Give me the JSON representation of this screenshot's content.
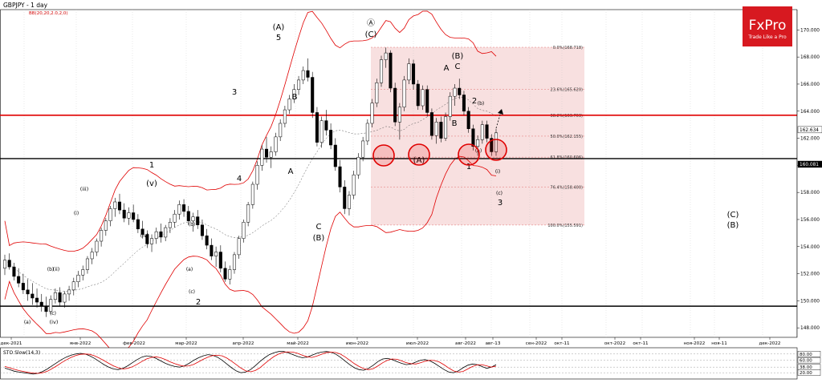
{
  "header": {
    "title": "GBPJPY - 1 day",
    "indicator": "BB(20,20,2.0,2,0)"
  },
  "brand": {
    "name": "FxPro",
    "tagline": "Trade Like a Pro",
    "color": "#d71920"
  },
  "colors": {
    "fib_fill": "#f6d6d6",
    "resistance": "#e00000",
    "support": "#000000",
    "band": "#e00000",
    "candle_up": "#ffffff",
    "candle_down": "#000000",
    "circle": "#e00000"
  },
  "chart_data": [
    {
      "type": "candlestick",
      "title": "GBPJPY - 1 day",
      "price_axis": {
        "ticks": [
          "170.000",
          "168.000",
          "166.000",
          "164.000",
          "162.000",
          "160.000",
          "158.000",
          "156.000",
          "154.000",
          "152.000",
          "150.000",
          "148.000"
        ],
        "ylim": [
          147.3,
          171.5
        ],
        "tags": [
          "162.634",
          "160.081"
        ]
      },
      "time_axis": {
        "labels": [
          "дек-2021",
          "янв-2022",
          "фев-2022",
          "мар-2022",
          "апр-2022",
          "май-2022",
          "июн-2022",
          "июл-2022",
          "авг-2022",
          "авг-13",
          "сен-2022",
          "окт-11",
          "окт-2022",
          "окт-11",
          "ноя-2022",
          "ноя-11",
          "дек-2022"
        ]
      },
      "levels": {
        "resistance": 163.7,
        "support_mid": 160.5,
        "support_low": 149.6
      },
      "fibonacci": [
        {
          "label": "0.0%(168.718)",
          "value": 168.718
        },
        {
          "label": "23.6%(165.620)",
          "value": 165.62
        },
        {
          "label": "38.2%(163.703)",
          "value": 163.703
        },
        {
          "label": "50.0%(162.155)",
          "value": 162.155
        },
        {
          "label": "61.8%(160.606)",
          "value": 160.606
        },
        {
          "label": "76.4%(158.400)",
          "value": 158.4
        },
        {
          "label": "100.0%(155.591)",
          "value": 155.591
        }
      ],
      "wave_labels": [
        "(A)",
        "5",
        "Ⓐ",
        "(C)",
        "3",
        "B",
        "A",
        "4",
        "1",
        "(v)",
        "(iii)",
        "(i)",
        "(iv)",
        "(ii)",
        "(b)",
        "(a)",
        "(c)",
        "(iv)",
        "(a)",
        "(b)",
        "(c)",
        "2",
        "C",
        "(B)",
        "(A)",
        "A",
        "(B)",
        "C",
        "B",
        "2",
        "(b)",
        "(a)",
        "1",
        "(i)",
        "(c)",
        "3",
        "(C)",
        "(B)"
      ],
      "candles": [
        [
          152.4,
          153.4,
          151.9,
          153.0
        ],
        [
          153.0,
          153.5,
          152.3,
          152.5
        ],
        [
          152.5,
          152.8,
          151.5,
          151.8
        ],
        [
          151.8,
          152.4,
          151.0,
          151.3
        ],
        [
          151.3,
          152.0,
          150.5,
          150.8
        ],
        [
          150.8,
          151.6,
          150.0,
          150.5
        ],
        [
          150.5,
          151.3,
          149.7,
          150.2
        ],
        [
          150.2,
          150.9,
          149.5,
          149.9
        ],
        [
          149.9,
          150.5,
          149.2,
          149.6
        ],
        [
          149.6,
          150.3,
          148.8,
          149.2
        ],
        [
          149.2,
          150.4,
          149.0,
          150.1
        ],
        [
          150.1,
          150.9,
          149.8,
          150.6
        ],
        [
          150.6,
          151.0,
          149.6,
          149.9
        ],
        [
          149.9,
          150.7,
          149.5,
          150.5
        ],
        [
          150.5,
          151.1,
          150.0,
          150.8
        ],
        [
          150.8,
          151.7,
          150.4,
          151.4
        ],
        [
          151.4,
          152.2,
          151.0,
          151.9
        ],
        [
          151.9,
          152.6,
          151.5,
          152.3
        ],
        [
          152.3,
          153.3,
          152.0,
          153.1
        ],
        [
          153.1,
          153.9,
          152.7,
          153.6
        ],
        [
          153.6,
          154.6,
          153.3,
          154.4
        ],
        [
          154.4,
          155.4,
          154.0,
          155.2
        ],
        [
          155.2,
          156.1,
          154.8,
          155.9
        ],
        [
          155.9,
          157.0,
          155.5,
          156.8
        ],
        [
          156.8,
          157.6,
          156.2,
          157.3
        ],
        [
          157.3,
          157.9,
          156.4,
          156.7
        ],
        [
          156.7,
          157.2,
          155.8,
          156.1
        ],
        [
          156.1,
          156.9,
          155.6,
          156.5
        ],
        [
          156.5,
          157.1,
          155.8,
          156.0
        ],
        [
          156.0,
          156.4,
          155.0,
          155.3
        ],
        [
          155.3,
          155.9,
          154.6,
          154.9
        ],
        [
          154.9,
          155.2,
          153.9,
          154.2
        ],
        [
          154.2,
          154.9,
          153.6,
          154.6
        ],
        [
          154.6,
          155.4,
          154.2,
          155.1
        ],
        [
          155.1,
          155.7,
          154.3,
          154.7
        ],
        [
          154.7,
          155.6,
          154.4,
          155.4
        ],
        [
          155.4,
          156.1,
          155.0,
          155.8
        ],
        [
          155.8,
          156.7,
          155.4,
          156.4
        ],
        [
          156.4,
          157.4,
          156.0,
          157.1
        ],
        [
          157.1,
          157.5,
          156.2,
          156.6
        ],
        [
          156.6,
          157.0,
          155.6,
          155.9
        ],
        [
          155.9,
          156.5,
          155.1,
          156.2
        ],
        [
          156.2,
          156.7,
          155.3,
          155.6
        ],
        [
          155.6,
          156.0,
          154.5,
          154.8
        ],
        [
          154.8,
          155.3,
          153.8,
          154.1
        ],
        [
          154.1,
          154.6,
          153.0,
          153.3
        ],
        [
          153.3,
          154.0,
          152.5,
          153.6
        ],
        [
          153.6,
          154.1,
          152.1,
          152.4
        ],
        [
          152.4,
          152.9,
          151.4,
          151.6
        ],
        [
          151.6,
          152.6,
          151.2,
          152.3
        ],
        [
          152.3,
          153.6,
          152.0,
          153.4
        ],
        [
          153.4,
          154.8,
          153.1,
          154.6
        ],
        [
          154.6,
          156.0,
          154.3,
          155.8
        ],
        [
          155.8,
          157.3,
          155.5,
          157.1
        ],
        [
          157.1,
          158.8,
          156.8,
          158.6
        ],
        [
          158.6,
          160.3,
          158.2,
          160.0
        ],
        [
          160.0,
          161.5,
          159.6,
          161.2
        ],
        [
          161.2,
          162.1,
          160.2,
          160.6
        ],
        [
          160.6,
          161.4,
          159.8,
          161.0
        ],
        [
          161.0,
          162.4,
          160.7,
          162.1
        ],
        [
          162.1,
          163.4,
          161.8,
          163.1
        ],
        [
          163.1,
          164.4,
          162.8,
          164.1
        ],
        [
          164.1,
          165.2,
          163.8,
          164.9
        ],
        [
          164.9,
          166.0,
          164.6,
          165.6
        ],
        [
          165.6,
          166.6,
          165.2,
          166.3
        ],
        [
          166.3,
          167.3,
          166.0,
          167.0
        ],
        [
          167.0,
          167.9,
          166.2,
          166.5
        ],
        [
          166.5,
          166.9,
          163.5,
          163.9
        ],
        [
          163.9,
          164.3,
          161.4,
          161.7
        ],
        [
          161.7,
          163.6,
          161.3,
          163.3
        ],
        [
          163.3,
          164.1,
          162.2,
          162.6
        ],
        [
          162.6,
          163.1,
          161.2,
          161.5
        ],
        [
          161.5,
          162.0,
          159.6,
          159.9
        ],
        [
          159.9,
          160.4,
          158.0,
          158.4
        ],
        [
          158.4,
          158.9,
          156.4,
          156.8
        ],
        [
          156.8,
          158.1,
          156.3,
          157.8
        ],
        [
          157.8,
          159.6,
          157.5,
          159.3
        ],
        [
          159.3,
          160.9,
          159.0,
          160.6
        ],
        [
          160.6,
          162.1,
          160.3,
          161.8
        ],
        [
          161.8,
          163.4,
          161.5,
          163.1
        ],
        [
          163.1,
          164.9,
          162.8,
          164.6
        ],
        [
          164.6,
          166.4,
          164.3,
          166.1
        ],
        [
          166.1,
          168.1,
          165.8,
          167.8
        ],
        [
          167.8,
          168.7,
          167.2,
          168.3
        ],
        [
          168.3,
          168.5,
          165.4,
          165.7
        ],
        [
          165.7,
          166.1,
          162.9,
          163.2
        ],
        [
          163.2,
          164.6,
          161.9,
          164.3
        ],
        [
          164.3,
          166.6,
          164.0,
          166.3
        ],
        [
          166.3,
          167.9,
          166.0,
          167.5
        ],
        [
          167.5,
          167.8,
          165.6,
          166.0
        ],
        [
          166.0,
          166.3,
          164.1,
          164.4
        ],
        [
          164.4,
          165.9,
          164.1,
          165.6
        ],
        [
          165.6,
          165.9,
          163.6,
          163.9
        ],
        [
          163.9,
          164.2,
          161.9,
          162.2
        ],
        [
          162.2,
          163.5,
          161.6,
          163.2
        ],
        [
          163.2,
          163.6,
          161.7,
          162.0
        ],
        [
          162.0,
          163.9,
          161.8,
          163.6
        ],
        [
          163.6,
          165.4,
          163.3,
          165.1
        ],
        [
          165.1,
          166.0,
          164.4,
          165.7
        ],
        [
          165.7,
          166.4,
          164.9,
          165.2
        ],
        [
          165.2,
          165.5,
          163.7,
          164.0
        ],
        [
          164.0,
          164.3,
          162.4,
          162.7
        ],
        [
          162.7,
          163.0,
          161.1,
          161.4
        ],
        [
          161.4,
          162.2,
          160.7,
          161.9
        ],
        [
          161.9,
          163.3,
          161.6,
          163.0
        ],
        [
          163.0,
          163.3,
          161.7,
          162.0
        ],
        [
          162.0,
          162.3,
          160.7,
          161.0
        ],
        [
          161.0,
          162.7,
          160.7,
          162.4
        ]
      ]
    },
    {
      "type": "line",
      "title": "STO Slow(14,3)",
      "yticks": [
        "80.00",
        "60.00",
        "38.00",
        "20.00"
      ],
      "ylim": [
        0,
        100
      ],
      "series": [
        {
          "name": "",
          "values": [
            35,
            30,
            25,
            22,
            20,
            18,
            16,
            18,
            24,
            32,
            42,
            52,
            62,
            70,
            76,
            80,
            82,
            80,
            74,
            66,
            56,
            46,
            38,
            32,
            30,
            34,
            42,
            52,
            62,
            70,
            74,
            72,
            66,
            58,
            50,
            44,
            40,
            38,
            42,
            50,
            60,
            68,
            74,
            78,
            76,
            70,
            60,
            48,
            36,
            26,
            20,
            22,
            30,
            42,
            56,
            68,
            78,
            84,
            88,
            88,
            84,
            78,
            72,
            68,
            70,
            76,
            82,
            86,
            88,
            86,
            80,
            70,
            58,
            46,
            36,
            30,
            28,
            34,
            44,
            56,
            64,
            66,
            62,
            56,
            50,
            46,
            48,
            54,
            60,
            62,
            58,
            50,
            40,
            30,
            22,
            20,
            26,
            36,
            44,
            48,
            46,
            40,
            34,
            38,
            46
          ]
        },
        {
          "name": "",
          "values": [
            40,
            36,
            31,
            27,
            24,
            21,
            19,
            18,
            20,
            25,
            33,
            42,
            52,
            61,
            69,
            75,
            79,
            80,
            79,
            74,
            67,
            59,
            50,
            42,
            36,
            32,
            34,
            39,
            47,
            56,
            64,
            69,
            71,
            68,
            62,
            55,
            49,
            44,
            41,
            42,
            47,
            55,
            63,
            70,
            75,
            76,
            74,
            67,
            57,
            46,
            35,
            26,
            23,
            27,
            36,
            49,
            61,
            72,
            80,
            85,
            87,
            86,
            82,
            76,
            71,
            69,
            73,
            79,
            84,
            86,
            85,
            80,
            71,
            60,
            49,
            40,
            33,
            30,
            33,
            42,
            52,
            60,
            64,
            63,
            58,
            52,
            49,
            48,
            52,
            57,
            60,
            59,
            54,
            45,
            35,
            26,
            22,
            24,
            32,
            40,
            45,
            46,
            42,
            38,
            41
          ]
        }
      ]
    }
  ]
}
